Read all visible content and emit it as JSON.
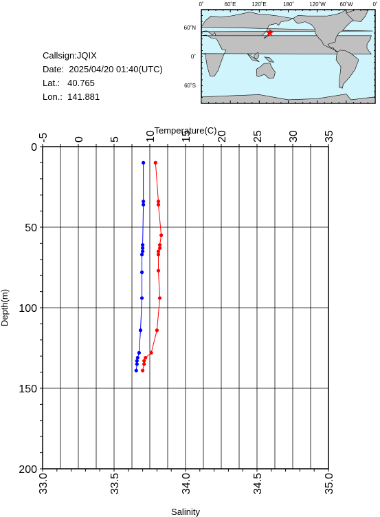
{
  "info": {
    "callsign": "Callsign:JQIX",
    "date": "Date:  2025/04/20 01:40(UTC)",
    "lat": "Lat.:   40.765",
    "lon": "Lon.:  141.881"
  },
  "map": {
    "top_labels": [
      "0˚",
      "60˚E",
      "120˚E",
      "180˚",
      "120˚W",
      "60˚W",
      "0˚"
    ],
    "side_labels": [
      "60˚N",
      "0˚",
      "60˚S"
    ],
    "ocean_color": "#d0f4fb",
    "land_color": "#c0c0c0",
    "marker_color": "#ff0000",
    "marker": {
      "lon": 141.881,
      "lat": 40.765
    }
  },
  "chart_data": {
    "type": "line",
    "ylabel": "Depth(m)",
    "ylim": [
      200,
      0
    ],
    "y_ticks": [
      "0",
      "50",
      "100",
      "150",
      "200"
    ],
    "top_axis": {
      "label": "Temperature(C)",
      "range": [
        -5,
        35
      ],
      "ticks": [
        "-5",
        "0",
        "5",
        "10",
        "15",
        "20",
        "25",
        "30",
        "35"
      ]
    },
    "bottom_axis": {
      "label": "Salinity",
      "range": [
        33.0,
        35.0
      ],
      "ticks": [
        "33.0",
        "33.5",
        "34.0",
        "34.5",
        "35.0"
      ]
    },
    "grid": true,
    "series": [
      {
        "axis": "temperature",
        "color": "#0000ff",
        "points": [
          [
            9.1,
            10
          ],
          [
            9.1,
            34
          ],
          [
            9.1,
            36
          ],
          [
            9.0,
            61
          ],
          [
            9.0,
            63
          ],
          [
            9.0,
            65
          ],
          [
            8.9,
            67
          ],
          [
            8.9,
            78
          ],
          [
            8.9,
            94
          ],
          [
            8.7,
            114
          ],
          [
            8.5,
            128
          ],
          [
            8.3,
            131
          ],
          [
            8.2,
            133
          ],
          [
            8.2,
            135
          ],
          [
            8.1,
            139
          ]
        ]
      },
      {
        "axis": "salinity",
        "color": "#ff0000",
        "points": [
          [
            33.79,
            10
          ],
          [
            33.81,
            34
          ],
          [
            33.81,
            36
          ],
          [
            33.83,
            55
          ],
          [
            33.82,
            61
          ],
          [
            33.82,
            63
          ],
          [
            33.81,
            65
          ],
          [
            33.81,
            67
          ],
          [
            33.81,
            77
          ],
          [
            33.82,
            94
          ],
          [
            33.8,
            114
          ],
          [
            33.76,
            128
          ],
          [
            33.72,
            131
          ],
          [
            33.71,
            133
          ],
          [
            33.71,
            135
          ],
          [
            33.7,
            139
          ]
        ]
      }
    ]
  }
}
